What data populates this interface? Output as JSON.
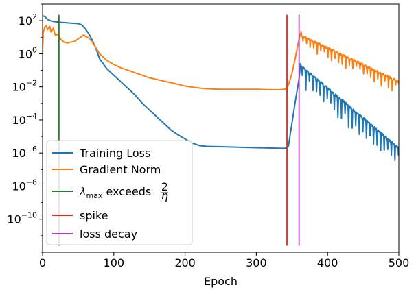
{
  "chart_data": {
    "type": "line",
    "title": "",
    "xlabel": "Epoch",
    "ylabel": "",
    "yscale": "log",
    "xlim": [
      0,
      500
    ],
    "ylim_log10": [
      -12,
      3
    ],
    "xticks": [
      0,
      100,
      200,
      300,
      400,
      500
    ],
    "xtick_labels": [
      "0",
      "100",
      "200",
      "300",
      "400",
      "500"
    ],
    "yticks_log10": [
      2,
      0,
      -2,
      -4,
      -6,
      -8,
      -10
    ],
    "ytick_labels": [
      {
        "base": "10",
        "exp": "2"
      },
      {
        "base": "10",
        "exp": "0"
      },
      {
        "base": "10",
        "exp": "−2"
      },
      {
        "base": "10",
        "exp": "−4"
      },
      {
        "base": "10",
        "exp": "−6"
      },
      {
        "base": "10",
        "exp": "−8"
      },
      {
        "base": "10",
        "exp": "−10"
      }
    ],
    "legend_position": "lower-left",
    "series": [
      {
        "name": "Training Loss",
        "color": "#1f77b4",
        "points_log10": [
          [
            0,
            2.3
          ],
          [
            3,
            2.25
          ],
          [
            8,
            2.05
          ],
          [
            15,
            1.95
          ],
          [
            25,
            1.9
          ],
          [
            40,
            1.85
          ],
          [
            50,
            1.82
          ],
          [
            55,
            1.75
          ],
          [
            60,
            1.5
          ],
          [
            65,
            1.2
          ],
          [
            70,
            0.8
          ],
          [
            75,
            0.3
          ],
          [
            80,
            -0.3
          ],
          [
            90,
            -0.9
          ],
          [
            100,
            -1.3
          ],
          [
            110,
            -1.7
          ],
          [
            120,
            -2.1
          ],
          [
            130,
            -2.5
          ],
          [
            140,
            -3.0
          ],
          [
            150,
            -3.4
          ],
          [
            160,
            -3.8
          ],
          [
            170,
            -4.2
          ],
          [
            180,
            -4.6
          ],
          [
            190,
            -4.9
          ],
          [
            200,
            -5.15
          ],
          [
            210,
            -5.4
          ],
          [
            220,
            -5.55
          ],
          [
            230,
            -5.6
          ],
          [
            250,
            -5.62
          ],
          [
            300,
            -5.68
          ],
          [
            340,
            -5.72
          ],
          [
            345,
            -5.6
          ],
          [
            350,
            -4.2
          ],
          [
            355,
            -2.8
          ],
          [
            360,
            -1.5
          ],
          [
            362,
            -0.6
          ]
        ],
        "oscillating_tail": {
          "from_epoch": 362,
          "to_epoch": 500,
          "start_log10": -0.7,
          "end_log10": -5.7,
          "amplitude_log10": 1.0,
          "period": 5
        }
      },
      {
        "name": "Gradient Norm",
        "color": "#ff7f0e",
        "points_log10": [
          [
            0,
            0.1
          ],
          [
            1,
            1.3
          ],
          [
            3,
            1.6
          ],
          [
            5,
            1.7
          ],
          [
            7,
            1.45
          ],
          [
            10,
            1.65
          ],
          [
            12,
            1.3
          ],
          [
            15,
            1.55
          ],
          [
            18,
            1.1
          ],
          [
            22,
            1.2
          ],
          [
            25,
            0.9
          ],
          [
            30,
            0.7
          ],
          [
            35,
            0.65
          ],
          [
            40,
            0.7
          ],
          [
            45,
            0.75
          ],
          [
            50,
            0.9
          ],
          [
            55,
            1.05
          ],
          [
            58,
            1.15
          ],
          [
            60,
            1.05
          ],
          [
            65,
            0.95
          ],
          [
            70,
            0.7
          ],
          [
            75,
            0.35
          ],
          [
            80,
            0.0
          ],
          [
            90,
            -0.4
          ],
          [
            100,
            -0.65
          ],
          [
            110,
            -0.85
          ],
          [
            120,
            -1.0
          ],
          [
            130,
            -1.15
          ],
          [
            140,
            -1.3
          ],
          [
            150,
            -1.45
          ],
          [
            160,
            -1.55
          ],
          [
            170,
            -1.65
          ],
          [
            180,
            -1.75
          ],
          [
            190,
            -1.85
          ],
          [
            200,
            -1.95
          ],
          [
            215,
            -2.05
          ],
          [
            230,
            -2.12
          ],
          [
            250,
            -2.15
          ],
          [
            300,
            -2.15
          ],
          [
            330,
            -2.18
          ],
          [
            340,
            -2.15
          ],
          [
            345,
            -1.9
          ],
          [
            350,
            -1.2
          ],
          [
            355,
            -0.2
          ],
          [
            360,
            0.9
          ],
          [
            363,
            1.35
          ]
        ],
        "oscillating_tail": {
          "from_epoch": 363,
          "to_epoch": 500,
          "start_log10": 1.1,
          "end_log10": -1.7,
          "amplitude_log10": 0.55,
          "period": 5
        }
      }
    ],
    "vlines": [
      {
        "name": "λmax exceeds 2/η",
        "x": 23,
        "color": "#2a7a2a"
      },
      {
        "name": "spike",
        "x": 343,
        "color": "#e8231f"
      },
      {
        "name": "loss decay",
        "x": 360,
        "color": "#b43fbf"
      }
    ],
    "legend": [
      {
        "label": "Training Loss",
        "color": "#1f77b4",
        "rich": false
      },
      {
        "label": "Gradient Norm",
        "color": "#ff7f0e",
        "rich": false
      },
      {
        "label": "λmax exceeds 2/η",
        "color": "#2a7a2a",
        "rich": true,
        "parts": {
          "lambda": "λ",
          "sub": "max",
          "text": " exceeds ",
          "num": "2",
          "den": "η"
        }
      },
      {
        "label": "spike",
        "color": "#e8231f",
        "rich": false
      },
      {
        "label": "loss decay",
        "color": "#b43fbf",
        "rich": false
      }
    ]
  }
}
